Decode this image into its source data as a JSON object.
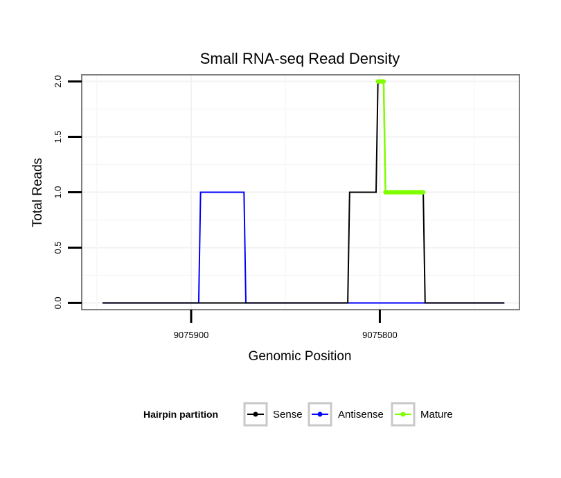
{
  "chart_data": {
    "type": "line",
    "title": "Small RNA-seq Read Density",
    "xlabel": "Genomic Position",
    "ylabel": "Total Reads",
    "x_reversed": true,
    "xlim": [
      9075958,
      9075726
    ],
    "ylim": [
      -0.06,
      2.06
    ],
    "x_ticks": [
      9075900,
      9075800
    ],
    "x_tick_labels": [
      "9075900",
      "9075800"
    ],
    "y_ticks": [
      0,
      0.5,
      1,
      1.5,
      2
    ],
    "y_tick_labels": [
      "0.0",
      "0.5",
      "1.0",
      "1.5",
      "2.0"
    ],
    "legend_position": "bottom",
    "legend_title": "Hairpin partition",
    "series": [
      {
        "name": "Sense",
        "color": "#000000",
        "x": [
          9075947,
          9075817,
          9075816,
          9075802,
          9075801,
          9075798,
          9075797,
          9075777,
          9075776,
          9075734
        ],
        "y": [
          0,
          0,
          1,
          1,
          2,
          2,
          1,
          1,
          0,
          0
        ]
      },
      {
        "name": "Antisense",
        "color": "#0000ff",
        "x": [
          9075947,
          9075896,
          9075895,
          9075872,
          9075871,
          9075734
        ],
        "y": [
          0,
          0,
          1,
          1,
          0,
          0
        ]
      },
      {
        "name": "Mature",
        "color": "#7fff00",
        "x": [
          9075801,
          9075798,
          9075797,
          9075777
        ],
        "y": [
          2,
          2,
          1,
          1
        ]
      }
    ]
  }
}
